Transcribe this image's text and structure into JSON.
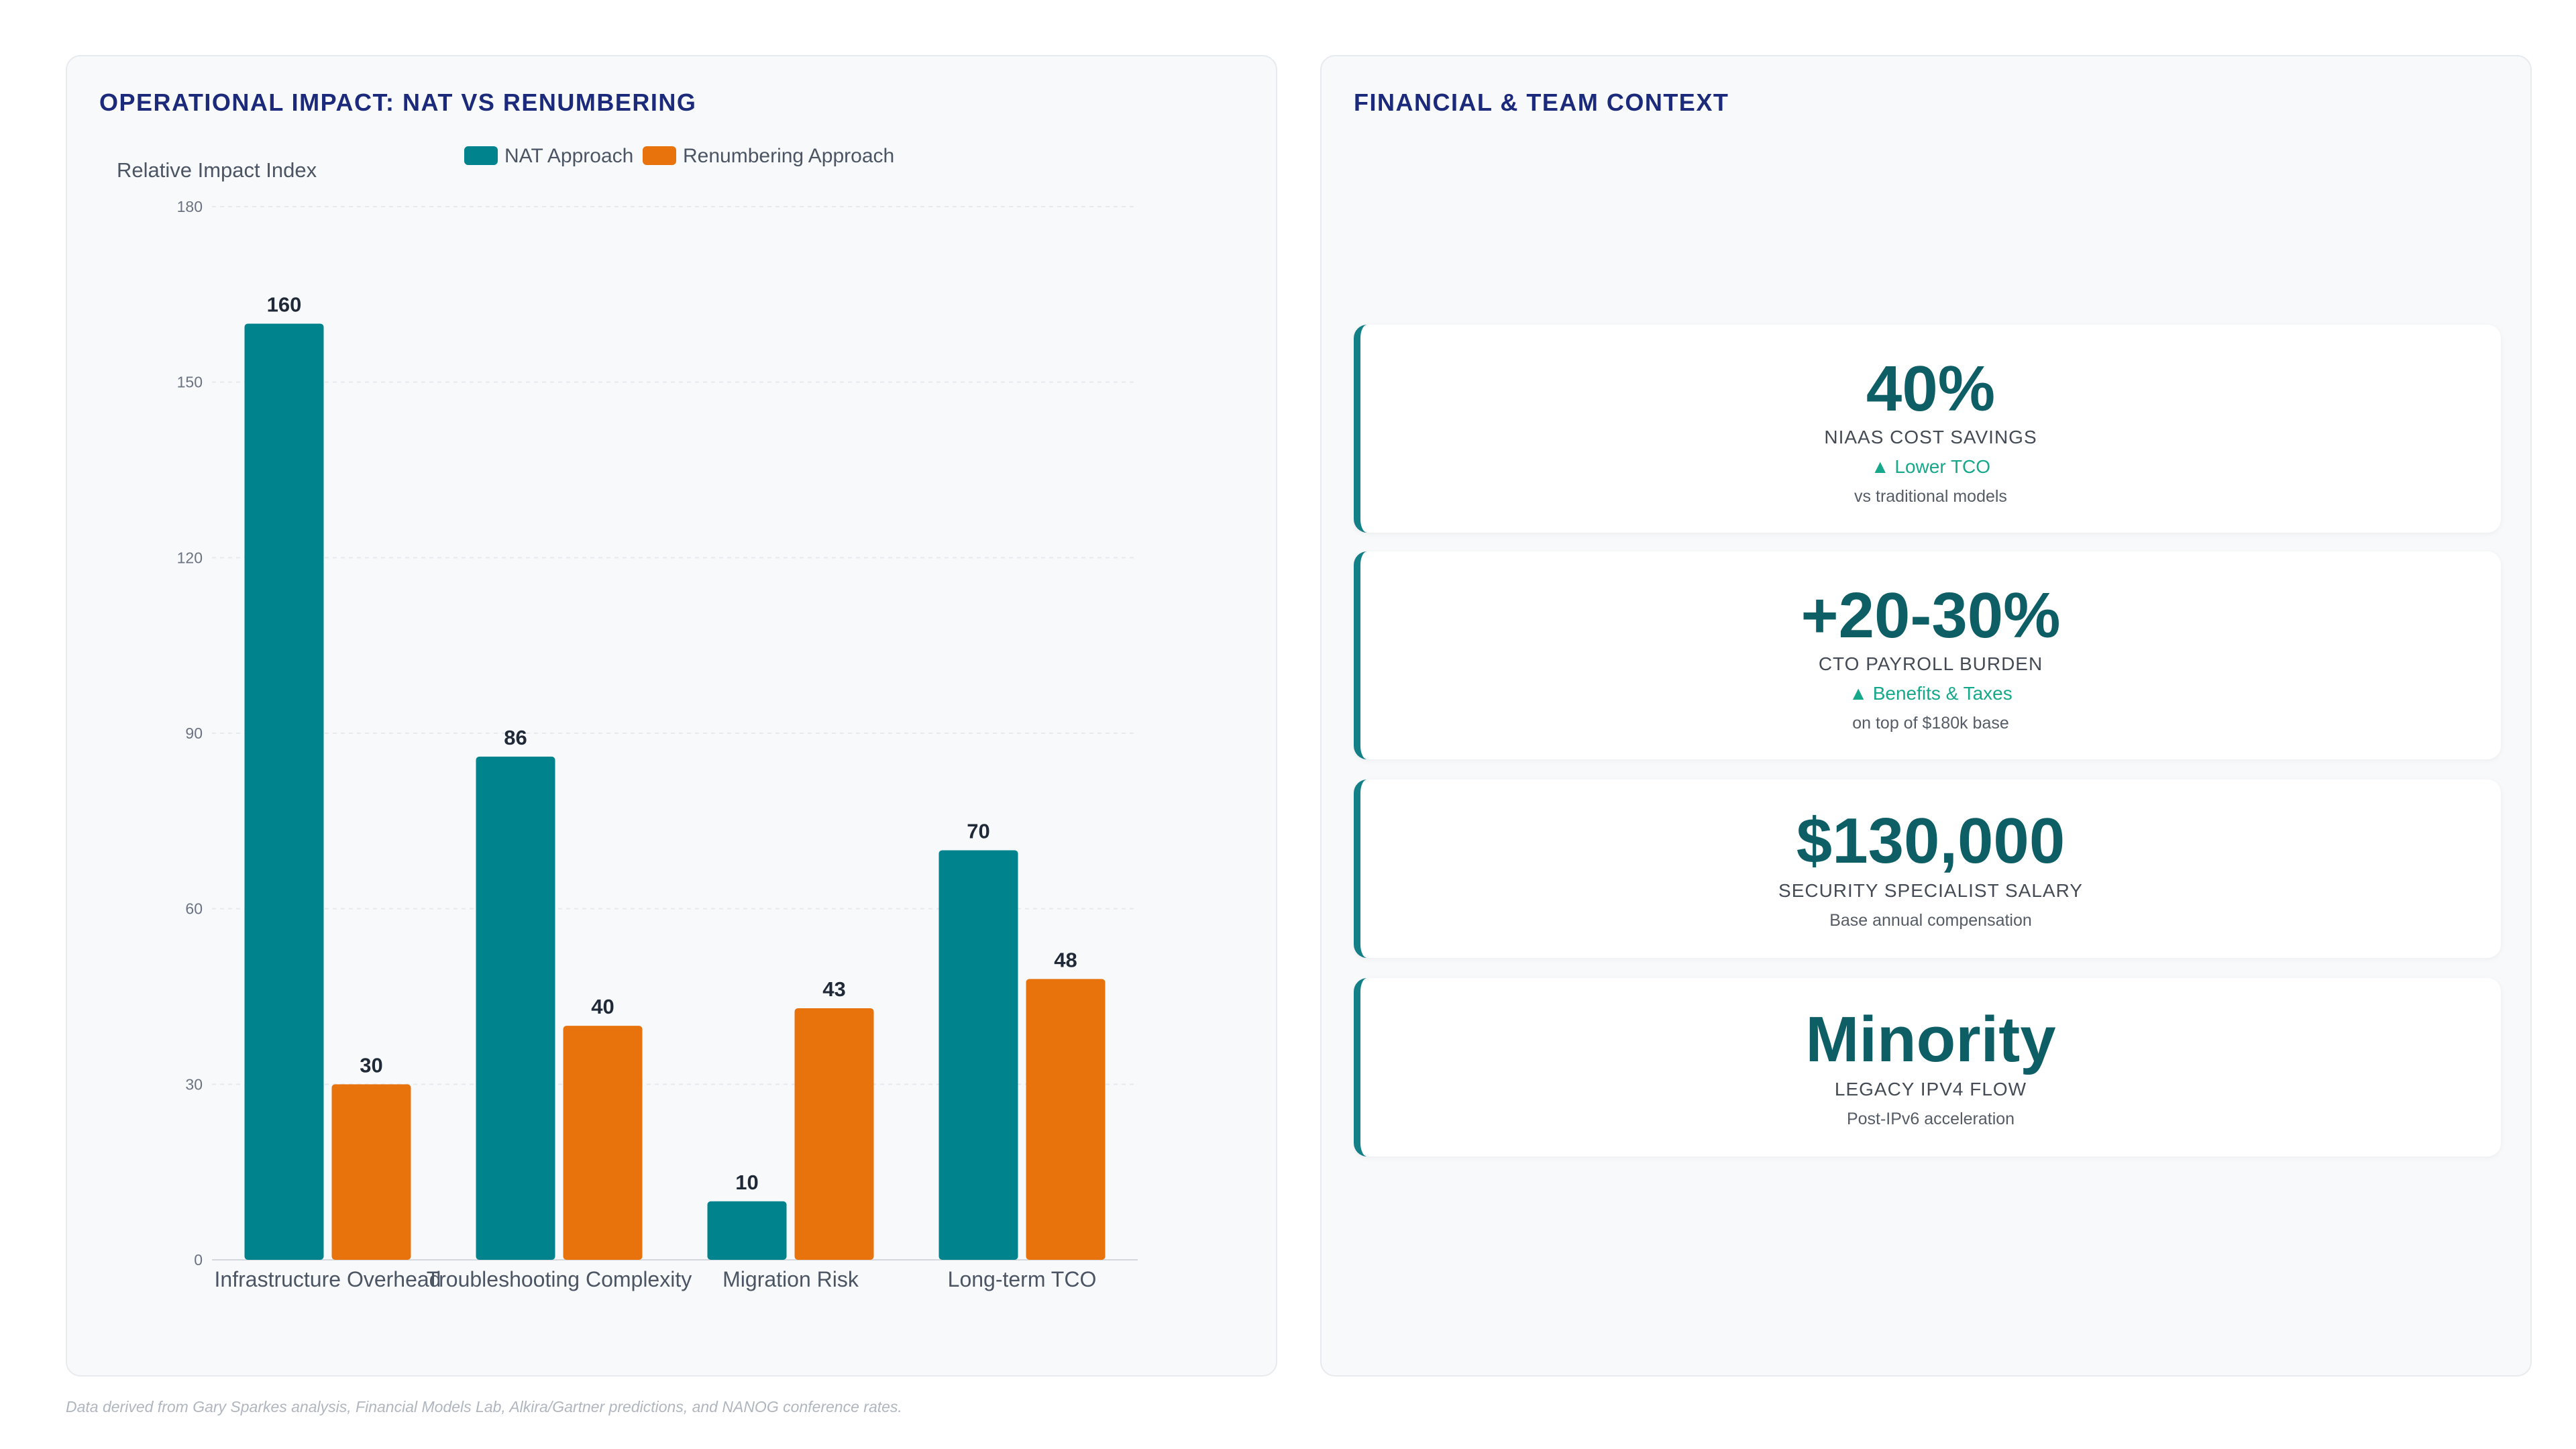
{
  "left_panel": {
    "title": "OPERATIONAL IMPACT: NAT VS RENUMBERING"
  },
  "right_panel": {
    "title": "FINANCIAL & TEAM CONTEXT"
  },
  "chart_data": {
    "type": "bar",
    "title": "",
    "ylabel": "Relative Impact Index",
    "xlabel": "",
    "categories": [
      "Infrastructure Overhead",
      "Troubleshooting Complexity",
      "Migration Risk",
      "Long-term TCO"
    ],
    "series": [
      {
        "name": "NAT Approach",
        "color": "#00838c",
        "values": [
          160,
          86,
          10,
          70
        ]
      },
      {
        "name": "Renumbering Approach",
        "color": "#e8720c",
        "values": [
          30,
          40,
          43,
          48
        ]
      }
    ],
    "ylim": [
      0,
      180
    ],
    "yticks": [
      0,
      30,
      60,
      90,
      120,
      150,
      180
    ],
    "legend_position": "top",
    "grid": true,
    "data_labels": true
  },
  "stats": [
    {
      "value": "40%",
      "label": "NIAAS COST SAVINGS",
      "trend": "▲ Lower TCO",
      "note": "vs traditional models"
    },
    {
      "value": "+20-30%",
      "label": "CTO PAYROLL BURDEN",
      "trend": "▲ Benefits & Taxes",
      "note": "on top of $180k base"
    },
    {
      "value": "$130,000",
      "label": "SECURITY SPECIALIST SALARY",
      "trend": "",
      "note": "Base annual compensation"
    },
    {
      "value": "Minority",
      "label": "LEGACY IPV4 FLOW",
      "trend": "",
      "note": "Post-IPv6 acceleration"
    }
  ],
  "footer": {
    "note": "Data derived from Gary Sparkes analysis, Financial Models Lab, Alkira/Gartner predictions, and NANOG conference rates."
  },
  "colors": {
    "accent": "#138088",
    "title": "#1b2a7a",
    "value": "#0e5e66",
    "trend": "#15a88a"
  }
}
